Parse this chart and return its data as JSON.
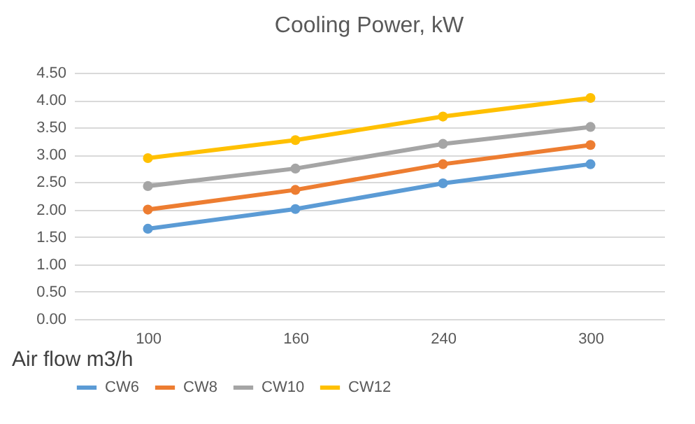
{
  "chart_data": {
    "type": "line",
    "title": "Cooling Power, kW",
    "xlabel": "Air flow m3/h",
    "categories": [
      "100",
      "160",
      "240",
      "300"
    ],
    "series": [
      {
        "name": "CW6",
        "color": "#5b9bd5",
        "values": [
          1.65,
          2.01,
          2.48,
          2.83
        ]
      },
      {
        "name": "CW8",
        "color": "#ed7d31",
        "values": [
          2.0,
          2.36,
          2.83,
          3.18
        ]
      },
      {
        "name": "CW10",
        "color": "#a5a5a5",
        "values": [
          2.43,
          2.75,
          3.2,
          3.51
        ]
      },
      {
        "name": "CW12",
        "color": "#ffc000",
        "values": [
          2.94,
          3.27,
          3.7,
          4.04
        ]
      }
    ],
    "ylim": [
      0,
      4.5
    ],
    "yticks": [
      {
        "value": 0,
        "label": "0.00"
      },
      {
        "value": 0.5,
        "label": "0.50"
      },
      {
        "value": 1,
        "label": "1.00"
      },
      {
        "value": 1.5,
        "label": "1.50"
      },
      {
        "value": 2,
        "label": "2.00"
      },
      {
        "value": 2.5,
        "label": "2.50"
      },
      {
        "value": 3,
        "label": "3.00"
      },
      {
        "value": 3.5,
        "label": "3.50"
      },
      {
        "value": 4,
        "label": "4.00"
      },
      {
        "value": 4.5,
        "label": "4.50"
      }
    ],
    "grid": "y",
    "legend": "bottom",
    "marker": "circle",
    "line_style": "solid"
  }
}
